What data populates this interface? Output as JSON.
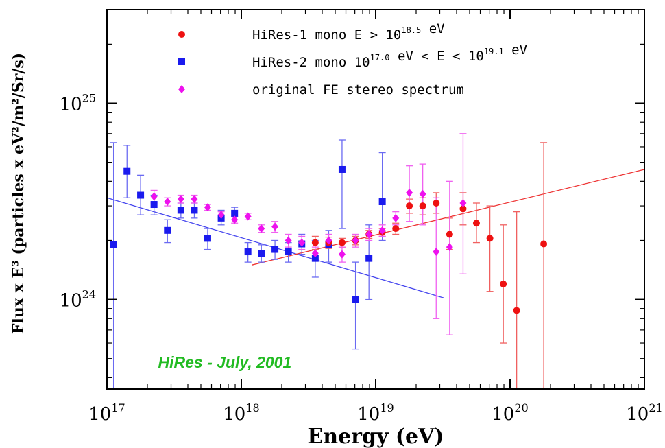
{
  "chart_data": {
    "type": "scatter",
    "xscale": "log",
    "yscale": "log",
    "xlim": [
      1e+17,
      1e+21
    ],
    "ylim": [
      3.5e+23,
      3e+25
    ],
    "xlabel": "Energy (eV)",
    "ylabel": "Flux x E³ (particles x eV²/m²/Sr/s)",
    "x_ticks": [
      {
        "value": 1e+17,
        "base": "10",
        "exp": "17"
      },
      {
        "value": 1e+18,
        "base": "10",
        "exp": "18"
      },
      {
        "value": 1e+19,
        "base": "10",
        "exp": "19"
      },
      {
        "value": 1e+20,
        "base": "10",
        "exp": "20"
      },
      {
        "value": 1e+21,
        "base": "10",
        "exp": "21"
      }
    ],
    "y_ticks": [
      {
        "value": 1e+24,
        "base": "10",
        "exp": "24"
      },
      {
        "value": 1e+25,
        "base": "10",
        "exp": "25"
      }
    ],
    "grid": false,
    "legend_position": "top",
    "annotation": {
      "text": "HiRes - July, 2001",
      "color": "#22bb22",
      "x": 2.4e+17,
      "y": 4.5e+23
    },
    "legend": [
      {
        "series": "hires1",
        "parts": [
          {
            "t": "HiRes-1 mono E > 10"
          },
          {
            "t": "18.5",
            "sup": true
          },
          {
            "t": " eV"
          }
        ]
      },
      {
        "series": "hires2",
        "parts": [
          {
            "t": "HiRes-2 mono 10"
          },
          {
            "t": "17.0",
            "sup": true
          },
          {
            "t": " eV < E < 10"
          },
          {
            "t": "19.1",
            "sup": true
          },
          {
            "t": " eV"
          }
        ]
      },
      {
        "series": "stereo",
        "parts": [
          {
            "t": "original FE stereo spectrum"
          }
        ]
      }
    ],
    "fits": [
      {
        "color": "#4444ee",
        "x": [
          1e+17,
          3.2e+19
        ],
        "y": [
          3.3e+24,
          1.02e+24
        ]
      },
      {
        "color": "#ee3333",
        "x": [
          1.2e+18,
          1e+21
        ],
        "y": [
          1.5e+24,
          4.6e+24
        ]
      }
    ],
    "series": [
      {
        "id": "hires2",
        "name": "HiRes-2 mono 10^17.0 eV < E < 10^19.1 eV",
        "color": "#1a1aee",
        "marker": "square",
        "points": [
          {
            "x": 1.12e+17,
            "y": 1.9e+24,
            "lo": 3.5e+23,
            "hi": 6.3e+24
          },
          {
            "x": 1.41e+17,
            "y": 4.5e+24,
            "lo": 3.3e+24,
            "hi": 6.1e+24
          },
          {
            "x": 1.78e+17,
            "y": 3.4e+24,
            "lo": 2.7e+24,
            "hi": 4.3e+24
          },
          {
            "x": 2.24e+17,
            "y": 3.05e+24,
            "lo": 2.7e+24,
            "hi": 3.4e+24
          },
          {
            "x": 2.82e+17,
            "y": 2.25e+24,
            "lo": 1.95e+24,
            "hi": 2.55e+24
          },
          {
            "x": 3.55e+17,
            "y": 2.85e+24,
            "lo": 2.6e+24,
            "hi": 3.1e+24
          },
          {
            "x": 4.47e+17,
            "y": 2.85e+24,
            "lo": 2.6e+24,
            "hi": 3.1e+24
          },
          {
            "x": 5.62e+17,
            "y": 2.05e+24,
            "lo": 1.8e+24,
            "hi": 2.3e+24
          },
          {
            "x": 7.08e+17,
            "y": 2.6e+24,
            "lo": 2.4e+24,
            "hi": 2.85e+24
          },
          {
            "x": 8.91e+17,
            "y": 2.75e+24,
            "lo": 2.55e+24,
            "hi": 2.95e+24
          },
          {
            "x": 1.12e+18,
            "y": 1.75e+24,
            "lo": 1.55e+24,
            "hi": 1.95e+24
          },
          {
            "x": 1.41e+18,
            "y": 1.72e+24,
            "lo": 1.55e+24,
            "hi": 1.9e+24
          },
          {
            "x": 1.78e+18,
            "y": 1.8e+24,
            "lo": 1.6e+24,
            "hi": 2e+24
          },
          {
            "x": 2.24e+18,
            "y": 1.75e+24,
            "lo": 1.55e+24,
            "hi": 1.95e+24
          },
          {
            "x": 2.82e+18,
            "y": 1.92e+24,
            "lo": 1.7e+24,
            "hi": 2.15e+24
          },
          {
            "x": 3.55e+18,
            "y": 1.62e+24,
            "lo": 1.3e+24,
            "hi": 2e+24
          },
          {
            "x": 4.47e+18,
            "y": 1.9e+24,
            "lo": 1.55e+24,
            "hi": 2.25e+24
          },
          {
            "x": 5.62e+18,
            "y": 4.6e+24,
            "lo": 2.3e+24,
            "hi": 6.5e+24
          },
          {
            "x": 7.08e+18,
            "y": 1e+24,
            "lo": 5.6e+23,
            "hi": 1.55e+24
          },
          {
            "x": 8.91e+18,
            "y": 1.62e+24,
            "lo": 1e+24,
            "hi": 2.4e+24
          },
          {
            "x": 1.12e+19,
            "y": 3.15e+24,
            "lo": 2e+24,
            "hi": 5.6e+24
          }
        ]
      },
      {
        "id": "hires1",
        "name": "HiRes-1 mono E > 10^18.5 eV",
        "color": "#ee1111",
        "marker": "circle",
        "points": [
          {
            "x": 3.55e+18,
            "y": 1.95e+24,
            "lo": 1.8e+24,
            "hi": 2.1e+24
          },
          {
            "x": 4.47e+18,
            "y": 1.95e+24,
            "lo": 1.82e+24,
            "hi": 2.08e+24
          },
          {
            "x": 5.62e+18,
            "y": 1.95e+24,
            "lo": 1.85e+24,
            "hi": 2.05e+24
          },
          {
            "x": 7.08e+18,
            "y": 2e+24,
            "lo": 1.9e+24,
            "hi": 2.1e+24
          },
          {
            "x": 8.91e+18,
            "y": 2.15e+24,
            "lo": 2.05e+24,
            "hi": 2.25e+24
          },
          {
            "x": 1.12e+19,
            "y": 2.2e+24,
            "lo": 2.1e+24,
            "hi": 2.3e+24
          },
          {
            "x": 1.41e+19,
            "y": 2.3e+24,
            "lo": 2.15e+24,
            "hi": 2.45e+24
          },
          {
            "x": 1.78e+19,
            "y": 3e+24,
            "lo": 2.75e+24,
            "hi": 3.25e+24
          },
          {
            "x": 2.24e+19,
            "y": 3e+24,
            "lo": 2.7e+24,
            "hi": 3.3e+24
          },
          {
            "x": 2.82e+19,
            "y": 3.1e+24,
            "lo": 2.75e+24,
            "hi": 3.5e+24
          },
          {
            "x": 3.55e+19,
            "y": 2.15e+24,
            "lo": 1.8e+24,
            "hi": 2.6e+24
          },
          {
            "x": 4.47e+19,
            "y": 2.9e+24,
            "lo": 2.4e+24,
            "hi": 3.5e+24
          },
          {
            "x": 5.62e+19,
            "y": 2.45e+24,
            "lo": 1.95e+24,
            "hi": 3.1e+24
          },
          {
            "x": 7.08e+19,
            "y": 2.05e+24,
            "lo": 1.1e+24,
            "hi": 3e+24
          },
          {
            "x": 8.91e+19,
            "y": 1.2e+24,
            "lo": 6e+23,
            "hi": 2.4e+24
          },
          {
            "x": 1.12e+20,
            "y": 8.8e+23,
            "lo": 3.5e+23,
            "hi": 2.8e+24
          },
          {
            "x": 1.78e+20,
            "y": 1.92e+24,
            "lo": 3.5e+23,
            "hi": 6.3e+24
          }
        ]
      },
      {
        "id": "stereo",
        "name": "original FE stereo spectrum",
        "color": "#ee11ee",
        "marker": "diamond",
        "points": [
          {
            "x": 2.24e+17,
            "y": 3.35e+24,
            "lo": 3.1e+24,
            "hi": 3.6e+24
          },
          {
            "x": 2.82e+17,
            "y": 3.15e+24,
            "lo": 3e+24,
            "hi": 3.3e+24
          },
          {
            "x": 3.55e+17,
            "y": 3.25e+24,
            "lo": 3.1e+24,
            "hi": 3.4e+24
          },
          {
            "x": 4.47e+17,
            "y": 3.25e+24,
            "lo": 3.1e+24,
            "hi": 3.4e+24
          },
          {
            "x": 5.62e+17,
            "y": 2.95e+24,
            "lo": 2.85e+24,
            "hi": 3.05e+24
          },
          {
            "x": 7.08e+17,
            "y": 2.7e+24,
            "lo": 2.6e+24,
            "hi": 2.8e+24
          },
          {
            "x": 8.91e+17,
            "y": 2.55e+24,
            "lo": 2.45e+24,
            "hi": 2.65e+24
          },
          {
            "x": 1.12e+18,
            "y": 2.65e+24,
            "lo": 2.55e+24,
            "hi": 2.75e+24
          },
          {
            "x": 1.41e+18,
            "y": 2.3e+24,
            "lo": 2.2e+24,
            "hi": 2.4e+24
          },
          {
            "x": 1.78e+18,
            "y": 2.35e+24,
            "lo": 2.2e+24,
            "hi": 2.5e+24
          },
          {
            "x": 2.24e+18,
            "y": 2e+24,
            "lo": 1.85e+24,
            "hi": 2.15e+24
          },
          {
            "x": 2.82e+18,
            "y": 1.95e+24,
            "lo": 1.8e+24,
            "hi": 2.1e+24
          },
          {
            "x": 3.55e+18,
            "y": 1.72e+24,
            "lo": 1.6e+24,
            "hi": 1.85e+24
          },
          {
            "x": 4.47e+18,
            "y": 2e+24,
            "lo": 1.85e+24,
            "hi": 2.15e+24
          },
          {
            "x": 5.62e+18,
            "y": 1.7e+24,
            "lo": 1.55e+24,
            "hi": 1.85e+24
          },
          {
            "x": 7.08e+18,
            "y": 2e+24,
            "lo": 1.85e+24,
            "hi": 2.15e+24
          },
          {
            "x": 8.91e+18,
            "y": 2.15e+24,
            "lo": 2e+24,
            "hi": 2.3e+24
          },
          {
            "x": 1.12e+19,
            "y": 2.25e+24,
            "lo": 2.1e+24,
            "hi": 2.4e+24
          },
          {
            "x": 1.41e+19,
            "y": 2.6e+24,
            "lo": 2.4e+24,
            "hi": 2.8e+24
          },
          {
            "x": 1.78e+19,
            "y": 3.5e+24,
            "lo": 2.5e+24,
            "hi": 4.8e+24
          },
          {
            "x": 2.24e+19,
            "y": 3.45e+24,
            "lo": 2.4e+24,
            "hi": 4.9e+24
          },
          {
            "x": 2.82e+19,
            "y": 1.75e+24,
            "lo": 8e+23,
            "hi": 3.3e+24
          },
          {
            "x": 3.55e+19,
            "y": 1.85e+24,
            "lo": 6.6e+23,
            "hi": 4e+24
          },
          {
            "x": 4.47e+19,
            "y": 3.1e+24,
            "lo": 1.35e+24,
            "hi": 7e+24
          }
        ]
      }
    ]
  }
}
